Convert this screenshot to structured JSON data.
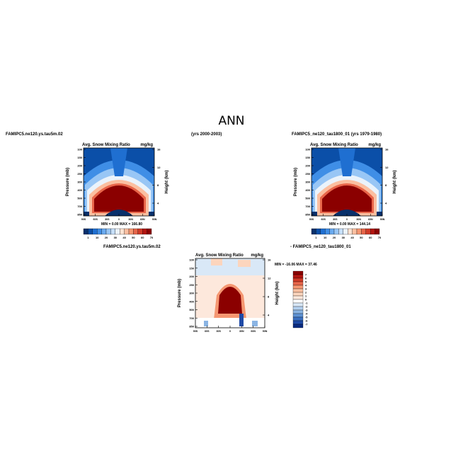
{
  "page": {
    "title": "ANN",
    "header_left": "FAMIPC5.ne120.ys.tau5m.02",
    "header_mid": "(yrs 2000-2003)",
    "header_right": "FAMIPC5_ne120_tau1800_01 (yrs 1979-1980)"
  },
  "chart_data": [
    {
      "type": "heatmap",
      "name": "FAMIPC5.ne120.ys.tau5m.02",
      "title": "Avg. Snow Mixing Ratio",
      "units": "mg/kg",
      "ylabel": "Pressure (mb)",
      "y2label": "Height (km)",
      "x_ticks": [
        "90S",
        "60S",
        "30S",
        "0",
        "30N",
        "60N",
        "90N"
      ],
      "y_ticks": [
        "100",
        "150",
        "200",
        "250",
        "300",
        "400",
        "500",
        "700",
        "850"
      ],
      "y2_ticks": [
        "16",
        "12",
        "8",
        "4"
      ],
      "min": "0.00",
      "max": "166.80",
      "stats_text": "MIN =    0.00   MAX = 166.80",
      "colorbar_levels": [
        "1",
        "10",
        "20",
        "30",
        "40",
        "50",
        "60",
        "70"
      ],
      "colors": [
        "#08306b",
        "#0b4fa8",
        "#1f6fd1",
        "#3f8ee6",
        "#6aaaf0",
        "#98c6f5",
        "#c6dff9",
        "#ebf3fb",
        "#fde3d2",
        "#fbbfa0",
        "#f59772",
        "#e8664a",
        "#d03b28",
        "#b31510",
        "#8b0000"
      ]
    },
    {
      "type": "heatmap",
      "name": "FAMIPC5_ne120_tau1800_01",
      "title": "Avg. Snow Mixing Ratio",
      "units": "mg/kg",
      "ylabel": "Pressure (mb)",
      "y2label": "Height (km)",
      "x_ticks": [
        "90S",
        "60S",
        "30S",
        "0",
        "30N",
        "60N",
        "90N"
      ],
      "y_ticks": [
        "100",
        "150",
        "200",
        "250",
        "300",
        "400",
        "500",
        "700",
        "850"
      ],
      "y2_ticks": [
        "16",
        "12",
        "8",
        "4"
      ],
      "min": "0.00",
      "max": "144.14",
      "stats_text": "MIN =    0.00   MAX = 144.14",
      "colorbar_levels": [
        "1",
        "10",
        "20",
        "30",
        "40",
        "50",
        "60",
        "70"
      ],
      "colors": [
        "#08306b",
        "#0b4fa8",
        "#1f6fd1",
        "#3f8ee6",
        "#6aaaf0",
        "#98c6f5",
        "#c6dff9",
        "#ebf3fb",
        "#fde3d2",
        "#fbbfa0",
        "#f59772",
        "#e8664a",
        "#d03b28",
        "#b31510",
        "#8b0000"
      ]
    },
    {
      "type": "heatmap",
      "name": "FAMIPC5.ne120.ys.tau5m.02 - FAMIPC5_ne120_tau1800_01",
      "header_left": "FAMIPC5.ne120.ys.tau5m.02",
      "header_right": "- FAMIPC5_ne120_tau1800_01",
      "title": "Avg. Snow Mixing Ratio",
      "units": "mg/kg",
      "ylabel": "Pressure (mb)",
      "y2label": "Height (km)",
      "x_ticks": [
        "90S",
        "60S",
        "30S",
        "0",
        "30N",
        "60N",
        "90N"
      ],
      "y_ticks": [
        "100",
        "150",
        "200",
        "250",
        "300",
        "400",
        "500",
        "700",
        "850"
      ],
      "y2_ticks": [
        "16",
        "12",
        "8",
        "4"
      ],
      "min": "-16.06",
      "max": "37.46",
      "stats_text": "MIN = -16.06   MAX =  37.46",
      "colorbar_levels": [
        "7",
        "6",
        "5",
        "4",
        "3",
        "2",
        "1",
        "0",
        "-1",
        "-2",
        "-3",
        "-4",
        "-5",
        "-6",
        "-7"
      ],
      "colors": [
        "#8b0000",
        "#b31510",
        "#d03b28",
        "#e8664a",
        "#f59772",
        "#fbbfa0",
        "#fcd5bd",
        "#fde8dc",
        "#ffffff",
        "#d9e8f7",
        "#b3d0ef",
        "#8ab4e3",
        "#5f93d4",
        "#3a6fc0",
        "#1f4aa6",
        "#0b2b80"
      ]
    }
  ]
}
